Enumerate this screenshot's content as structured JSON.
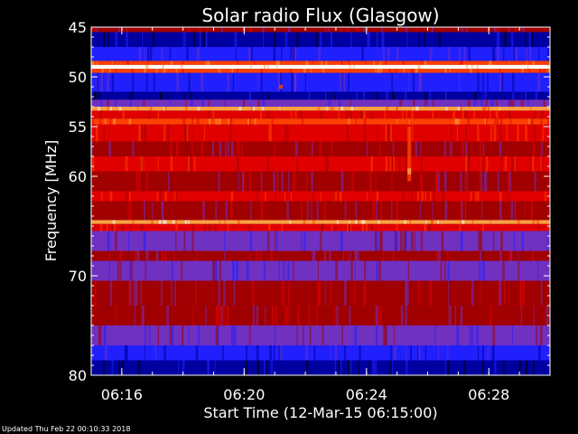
{
  "chart_data": {
    "type": "heatmap",
    "title": "Solar radio Flux (Glasgow)",
    "ylabel": "Frequency [MHz]",
    "xlabel": "Start Time (12-Mar-15 06:15:00)",
    "footer": "Updated Thu Feb 22 00:10:33 2018",
    "ylim": [
      45,
      80
    ],
    "xlim_minutes": [
      0,
      15
    ],
    "y_ticks": [
      {
        "value": 45,
        "label": "45"
      },
      {
        "value": 50,
        "label": "50"
      },
      {
        "value": 55,
        "label": "55"
      },
      {
        "value": 60,
        "label": "60"
      },
      {
        "value": 70,
        "label": "70"
      },
      {
        "value": 80,
        "label": "80"
      }
    ],
    "x_ticks": [
      {
        "value": 1,
        "label": "06:16"
      },
      {
        "value": 5,
        "label": "06:20"
      },
      {
        "value": 9,
        "label": "06:24"
      },
      {
        "value": 13,
        "label": "06:28"
      }
    ],
    "colorscale": [
      "#000000",
      "#0000a0",
      "#2020ff",
      "#7030c0",
      "#a00000",
      "#e00000",
      "#ff4000",
      "#ffa040",
      "#ffffff"
    ],
    "frequency_bands": [
      {
        "from": 45.0,
        "to": 45.5,
        "level": 4
      },
      {
        "from": 45.5,
        "to": 47.0,
        "level": 1
      },
      {
        "from": 47.0,
        "to": 48.4,
        "level": 2
      },
      {
        "from": 48.4,
        "to": 48.8,
        "level": 6
      },
      {
        "from": 48.8,
        "to": 49.2,
        "level": 8
      },
      {
        "from": 49.2,
        "to": 49.6,
        "level": 6
      },
      {
        "from": 49.6,
        "to": 51.5,
        "level": 2
      },
      {
        "from": 51.5,
        "to": 52.3,
        "level": 1
      },
      {
        "from": 52.3,
        "to": 53.0,
        "level": 3
      },
      {
        "from": 53.0,
        "to": 53.4,
        "level": 7
      },
      {
        "from": 53.4,
        "to": 54.2,
        "level": 5
      },
      {
        "from": 54.2,
        "to": 54.8,
        "level": 6
      },
      {
        "from": 54.8,
        "to": 56.5,
        "level": 5
      },
      {
        "from": 56.5,
        "to": 58.0,
        "level": 4
      },
      {
        "from": 58.0,
        "to": 59.5,
        "level": 5
      },
      {
        "from": 59.5,
        "to": 61.5,
        "level": 4
      },
      {
        "from": 61.5,
        "to": 62.5,
        "level": 5
      },
      {
        "from": 62.5,
        "to": 64.4,
        "level": 4
      },
      {
        "from": 64.4,
        "to": 64.8,
        "level": 7
      },
      {
        "from": 64.8,
        "to": 65.5,
        "level": 5
      },
      {
        "from": 65.5,
        "to": 67.5,
        "level": 3
      },
      {
        "from": 67.5,
        "to": 68.5,
        "level": 4
      },
      {
        "from": 68.5,
        "to": 70.5,
        "level": 3
      },
      {
        "from": 70.5,
        "to": 73.0,
        "level": 4
      },
      {
        "from": 73.0,
        "to": 75.0,
        "level": 4
      },
      {
        "from": 75.0,
        "to": 77.0,
        "level": 3
      },
      {
        "from": 77.0,
        "to": 78.5,
        "level": 2
      },
      {
        "from": 78.5,
        "to": 80.0,
        "level": 1
      }
    ],
    "bursts": [
      {
        "time": 10.4,
        "from": 55.0,
        "to": 60.5,
        "level": 6
      },
      {
        "time": 10.4,
        "from": 59.2,
        "to": 59.8,
        "level": 7
      },
      {
        "time": 6.2,
        "from": 50.8,
        "to": 51.2,
        "level": 6
      }
    ]
  }
}
